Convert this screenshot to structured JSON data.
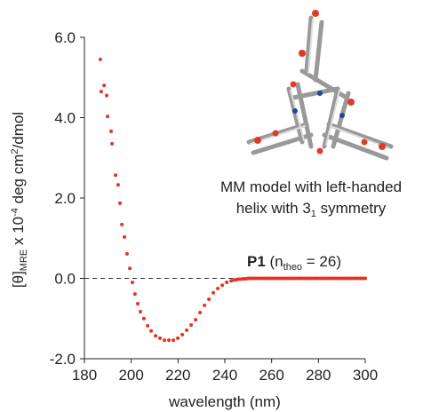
{
  "chart_data": {
    "type": "scatter",
    "xlabel": "wavelength (nm)",
    "ylabel": [
      "[θ]",
      "MRE",
      " x 10",
      "-4",
      " deg cm",
      "2",
      "/dmol"
    ],
    "annotations": {
      "model": {
        "line1": "MM model with left-handed",
        "line2": [
          "helix with 3",
          "1",
          " symmetry"
        ]
      },
      "label": [
        "P1",
        " (n",
        "theo",
        " = 26)"
      ]
    },
    "x": [
      186.8,
      187.2,
      188.4,
      189.5,
      189.9,
      191.4,
      191.8,
      193.3,
      194.4,
      195.2,
      196,
      197.1,
      198.2,
      199.4,
      200.5,
      201.6,
      202.8,
      203.9,
      205.4,
      207,
      208.5,
      210.4,
      212.3,
      214.2,
      216.1,
      218,
      219.9,
      221.8,
      223.7,
      225.6,
      227.5,
      229.4,
      231.3,
      233.2,
      235.1,
      237,
      238.9,
      240.8,
      242.7,
      244,
      245,
      246,
      247,
      248,
      249,
      250,
      251,
      252,
      253,
      254,
      255,
      256,
      257,
      258,
      259,
      260,
      261,
      262,
      263,
      264,
      265,
      266,
      267,
      268,
      269,
      270,
      271,
      272,
      273,
      274,
      275,
      276,
      277,
      278,
      279,
      280,
      281,
      282,
      283,
      284,
      285,
      286,
      287,
      288,
      289,
      290,
      291,
      292,
      293,
      294,
      295,
      296,
      297,
      298,
      299,
      300
    ],
    "series": [
      {
        "color": "#e8321f",
        "values": [
          5.45,
          4.65,
          4.8,
          4.55,
          4.03,
          3.66,
          3.35,
          2.57,
          2.33,
          1.87,
          1.34,
          1.03,
          0.61,
          0.25,
          -0.1,
          -0.39,
          -0.63,
          -0.83,
          -1.0,
          -1.18,
          -1.31,
          -1.43,
          -1.49,
          -1.54,
          -1.54,
          -1.54,
          -1.49,
          -1.4,
          -1.29,
          -1.16,
          -1.03,
          -0.85,
          -0.67,
          -0.52,
          -0.36,
          -0.25,
          -0.17,
          -0.1,
          -0.06,
          -0.04,
          -0.03,
          -0.02,
          -0.02,
          -0.01,
          -0.01,
          0,
          0,
          0,
          0,
          0,
          0,
          0,
          0,
          0,
          0,
          0,
          0,
          0,
          0,
          0,
          0,
          0,
          0,
          0,
          0,
          0,
          0,
          0,
          0,
          0,
          0,
          0,
          0,
          0,
          0,
          0,
          0,
          0,
          0,
          0,
          0,
          0,
          0,
          0,
          0,
          0,
          0,
          0,
          0,
          0,
          0,
          0,
          0,
          0,
          0,
          0
        ]
      }
    ],
    "xlim": [
      180,
      300
    ],
    "xticks": [
      180,
      200,
      220,
      240,
      260,
      280,
      300
    ],
    "ylim": [
      -2,
      6
    ],
    "yticks": [
      {
        "value": -2,
        "label": "-2.0"
      },
      {
        "value": 0,
        "label": "0.0"
      },
      {
        "value": 2,
        "label": "2.0"
      },
      {
        "value": 4,
        "label": "4.0"
      },
      {
        "value": 6,
        "label": "6.0"
      }
    ],
    "hline": 0
  }
}
